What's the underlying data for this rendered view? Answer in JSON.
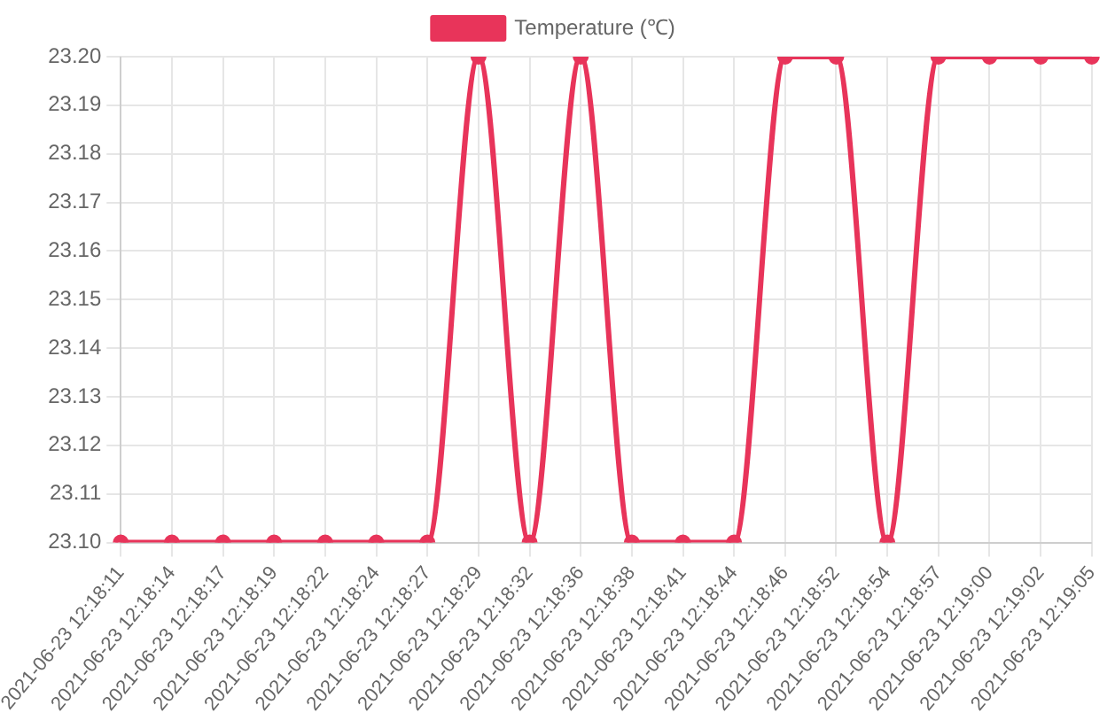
{
  "chart_data": {
    "type": "line",
    "categories": [
      "2021-06-23 12:18:11",
      "2021-06-23 12:18:14",
      "2021-06-23 12:18:17",
      "2021-06-23 12:18:19",
      "2021-06-23 12:18:22",
      "2021-06-23 12:18:24",
      "2021-06-23 12:18:27",
      "2021-06-23 12:18:29",
      "2021-06-23 12:18:32",
      "2021-06-23 12:18:36",
      "2021-06-23 12:18:38",
      "2021-06-23 12:18:41",
      "2021-06-23 12:18:44",
      "2021-06-23 12:18:46",
      "2021-06-23 12:18:52",
      "2021-06-23 12:18:54",
      "2021-06-23 12:18:57",
      "2021-06-23 12:19:00",
      "2021-06-23 12:19:02",
      "2021-06-23 12:19:05"
    ],
    "series": [
      {
        "name": "Temperature (℃)",
        "color": "#e8345a",
        "values": [
          23.1,
          23.1,
          23.1,
          23.1,
          23.1,
          23.1,
          23.1,
          23.2,
          23.1,
          23.2,
          23.1,
          23.1,
          23.1,
          23.2,
          23.2,
          23.1,
          23.2,
          23.2,
          23.2,
          23.2
        ]
      }
    ],
    "ylim": [
      23.1,
      23.2
    ],
    "yticks": [
      {
        "value": 23.1,
        "label": "23.10"
      },
      {
        "value": 23.11,
        "label": "23.11"
      },
      {
        "value": 23.12,
        "label": "23.12"
      },
      {
        "value": 23.13,
        "label": "23.13"
      },
      {
        "value": 23.14,
        "label": "23.14"
      },
      {
        "value": 23.15,
        "label": "23.15"
      },
      {
        "value": 23.16,
        "label": "23.16"
      },
      {
        "value": 23.17,
        "label": "23.17"
      },
      {
        "value": 23.18,
        "label": "23.18"
      },
      {
        "value": 23.19,
        "label": "23.19"
      },
      {
        "value": 23.2,
        "label": "23.20"
      }
    ],
    "grid": true,
    "legend": "top",
    "marker": "circle",
    "line_style": "solid"
  }
}
